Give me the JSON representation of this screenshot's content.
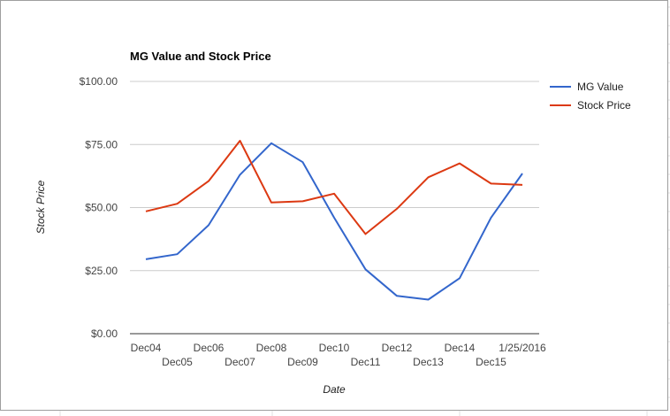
{
  "chart_data": {
    "type": "line",
    "title": "MG Value and Stock Price",
    "xlabel": "Date",
    "ylabel": "Stock Price",
    "categories": [
      "Dec04",
      "Dec05",
      "Dec06",
      "Dec07",
      "Dec08",
      "Dec09",
      "Dec10",
      "Dec11",
      "Dec12",
      "Dec13",
      "Dec14",
      "Dec15",
      "1/25/2016"
    ],
    "series": [
      {
        "name": "MG Value",
        "color": "#3366cc",
        "values": [
          29.5,
          31.5,
          43.0,
          63.0,
          75.5,
          68.0,
          46.0,
          25.5,
          15.0,
          13.5,
          22.0,
          46.0,
          63.5
        ]
      },
      {
        "name": "Stock Price",
        "color": "#dc3912",
        "values": [
          48.5,
          51.5,
          60.5,
          76.5,
          52.0,
          52.5,
          55.5,
          39.5,
          49.5,
          62.0,
          67.5,
          59.5,
          59.0
        ]
      }
    ],
    "ylim": [
      0,
      100
    ],
    "yticks": [
      0,
      25,
      50,
      75,
      100
    ],
    "ytick_labels": [
      "$0.00",
      "$25.00",
      "$50.00",
      "$75.00",
      "$100.00"
    ],
    "grid": true,
    "legend_position": "right"
  }
}
